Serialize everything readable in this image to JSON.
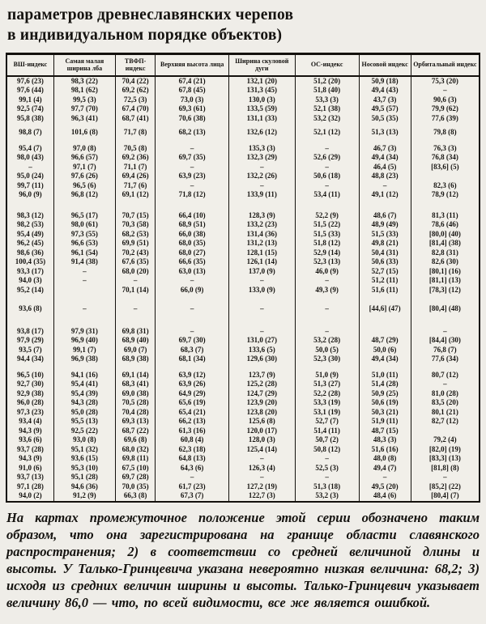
{
  "page": {
    "title_line1": "параметров древнеславянских черепов",
    "title_line2": "в индивидуальном порядке объектов)",
    "footnote": "На картах промежуточное положение этой серии обозначено таким образом, что она зарегистрирована на границе области славянского распространения; 2) в соответствии со средней величиной длины и высоты. У Талько-Гринцевича указана невероятно низкая величина: 68,2; 3) исходя из средних величин ширины и высоты. Талько-Гринцевич указывает величину 86,0 — что, по всей видимости, все же является ошибкой."
  },
  "table": {
    "columns": [
      "ВШ-индекс",
      "Самая малая ширина лба",
      "ТВФП-индекс",
      "Верхняя высота лица",
      "Ширина скуловой дуги",
      "ОС-индекс",
      "Носовой индекс",
      "Орбитальный индекс"
    ],
    "groups": [
      {
        "rows": [
          [
            "97,6 (23)",
            "98,3 (22)",
            "70,4 (22)",
            "67,4 (21)",
            "132,1 (20)",
            "51,2 (20)",
            "50,9 (18)",
            "75,3 (20)"
          ],
          [
            "97,6 (44)",
            "98,1 (62)",
            "69,2 (62)",
            "67,8 (45)",
            "131,3 (45)",
            "51,8 (40)",
            "49,4 (43)",
            "–"
          ],
          [
            "99,1 (4)",
            "99,5 (3)",
            "72,5 (3)",
            "73,0 (3)",
            "130,0 (3)",
            "53,3 (3)",
            "43,7 (3)",
            "90,6 (3)"
          ],
          [
            "92,5 (74)",
            "97,7 (70)",
            "67,4 (70)",
            "69,3 (61)",
            "133,5 (59)",
            "52,1 (38)",
            "49,5 (57)",
            "79,9 (62)"
          ],
          [
            "95,8 (38)",
            "96,3 (41)",
            "68,7 (41)",
            "70,6 (38)",
            "131,1 (33)",
            "53,2 (32)",
            "50,5 (35)",
            "77,6 (39)"
          ]
        ]
      },
      {
        "rows": [
          [
            "98,8 (7)",
            "101,6 (8)",
            "71,7 (8)",
            "68,2 (13)",
            "132,6 (12)",
            "52,1 (12)",
            "51,3 (13)",
            "79,8 (8)"
          ]
        ]
      },
      {
        "rows": [
          [
            "95,4 (7)",
            "97,0 (8)",
            "70,5 (8)",
            "–",
            "135,3 (3)",
            "–",
            "46,7 (3)",
            "76,3 (3)"
          ],
          [
            "98,0 (43)",
            "96,6 (57)",
            "69,2 (36)",
            "69,7 (35)",
            "132,3 (29)",
            "52,6 (29)",
            "49,4 (34)",
            "76,8 (34)"
          ],
          [
            "–",
            "97,1 (7)",
            "71,1 (7)",
            "–",
            "–",
            "–",
            "46,4 (5)",
            "[83,6] (5)"
          ],
          [
            "95,0 (24)",
            "97,6 (26)",
            "69,4 (26)",
            "63,9 (23)",
            "132,2 (26)",
            "50,6 (18)",
            "48,8 (23)",
            ""
          ],
          [
            "99,7 (11)",
            "96,5 (6)",
            "71,7 (6)",
            "–",
            "–",
            "–",
            "–",
            "82,3 (6)"
          ],
          [
            "96,0 (9)",
            "96,8 (12)",
            "69,1 (12)",
            "71,8 (12)",
            "133,9 (11)",
            "53,4 (11)",
            "49,1 (12)",
            "78,9 (12)"
          ]
        ]
      },
      {
        "rows": [
          [
            "98,3 (12)",
            "96,5 (17)",
            "70,7 (15)",
            "66,4 (10)",
            "128,3 (9)",
            "52,2 (9)",
            "48,6 (7)",
            "81,3 (11)"
          ],
          [
            "98,2 (53)",
            "98,0 (61)",
            "70,3 (58)",
            "68,9 (51)",
            "133,2 (23)",
            "51,5 (22)",
            "48,9 (49)",
            "78,6 (46)"
          ],
          [
            "95,4 (49)",
            "97,3 (55)",
            "68,2 (53)",
            "66,0 (38)",
            "131,4 (36)",
            "51,5 (33)",
            "51,5 (33)",
            "[80,0] (40)"
          ],
          [
            "96,2 (45)",
            "96,6 (53)",
            "69,9 (51)",
            "68,0 (35)",
            "131,2 (13)",
            "51,8 (12)",
            "49,8 (21)",
            "[81,4] (38)"
          ],
          [
            "98,6 (36)",
            "96,1 (54)",
            "70,2 (43)",
            "68,0 (27)",
            "128,1 (15)",
            "52,9 (14)",
            "50,4 (31)",
            "82,8 (31)"
          ],
          [
            "100,4 (35)",
            "91,4 (38)",
            "67,6 (35)",
            "66,6 (35)",
            "126,1 (14)",
            "52,3 (13)",
            "50,6 (33)",
            "82,6 (30)"
          ],
          [
            "93,3 (17)",
            "–",
            "68,0 (20)",
            "63,0 (13)",
            "137,0 (9)",
            "46,0 (9)",
            "52,7 (15)",
            "[80,1] (16)"
          ],
          [
            "94,0 (3)",
            "–",
            "–",
            "–",
            "–",
            "–",
            "51,2 (11)",
            "[81,1] (13)"
          ],
          [
            "95,2 (14)",
            "",
            "70,1 (14)",
            "66,0 (9)",
            "133,0 (9)",
            "49,3 (9)",
            "51,6 (11)",
            "[78,3] (12)"
          ]
        ]
      },
      {
        "rows": [
          [
            "93,6 (8)",
            "–",
            "–",
            "–",
            "–",
            "–",
            "[44,6] (47)",
            "[80,4] (48)"
          ]
        ]
      },
      {
        "rows": [
          [
            "93,8 (17)",
            "97,9 (31)",
            "69,8 (31)",
            "–",
            "–",
            "–",
            "",
            "–"
          ],
          [
            "97,9 (29)",
            "96,9 (40)",
            "68,9 (40)",
            "69,7 (30)",
            "131,0 (27)",
            "53,2 (28)",
            "48,7 (29)",
            "[84,4] (30)"
          ],
          [
            "93,5 (7)",
            "99,1 (7)",
            "69,0 (7)",
            "68,3 (7)",
            "133,6 (5)",
            "50,0 (5)",
            "50,0 (6)",
            "76,8 (7)"
          ],
          [
            "94,4 (34)",
            "96,9 (38)",
            "68,9 (38)",
            "68,1 (34)",
            "129,6 (30)",
            "52,3 (30)",
            "49,4 (34)",
            "77,6 (34)"
          ]
        ]
      },
      {
        "rows": [
          [
            "96,5 (10)",
            "94,1 (16)",
            "69,1 (14)",
            "63,9 (12)",
            "123,7 (9)",
            "51,0 (9)",
            "51,0 (11)",
            "80,7 (12)"
          ],
          [
            "92,7 (30)",
            "95,4 (41)",
            "68,3 (41)",
            "63,9 (26)",
            "125,2 (28)",
            "51,3 (27)",
            "51,4 (28)",
            "–"
          ],
          [
            "92,9 (38)",
            "95,4 (39)",
            "69,0 (38)",
            "64,9 (29)",
            "124,7 (29)",
            "52,2 (28)",
            "50,9 (25)",
            "81,0 (28)"
          ],
          [
            "96,0 (28)",
            "94,3 (28)",
            "70,5 (28)",
            "65,6 (19)",
            "123,9 (20)",
            "53,3 (19)",
            "50,6 (19)",
            "83,5 (20)"
          ],
          [
            "97,3 (23)",
            "95,0 (28)",
            "70,4 (28)",
            "65,4 (21)",
            "123,8 (20)",
            "53,1 (19)",
            "50,3 (21)",
            "80,1 (21)"
          ],
          [
            "93,4 (4)",
            "95,5 (13)",
            "69,3 (13)",
            "66,2 (13)",
            "125,6 (8)",
            "52,7 (7)",
            "51,9 (11)",
            "82,7 (12)"
          ],
          [
            "94,3 (9)",
            "92,5 (22)",
            "68,7 (22)",
            "61,3 (16)",
            "120,0 (17)",
            "51,4 (11)",
            "48,7 (15)",
            ""
          ],
          [
            "93,6 (6)",
            "93,0 (8)",
            "69,6 (8)",
            "60,8 (4)",
            "128,0 (3)",
            "50,7 (2)",
            "48,3 (3)",
            "79,2 (4)"
          ],
          [
            "93,7 (28)",
            "95,1 (32)",
            "68,0 (32)",
            "62,3 (18)",
            "125,4 (14)",
            "50,8 (12)",
            "51,6 (16)",
            "[82,0] (19)"
          ],
          [
            "94,3 (9)",
            "93,6 (15)",
            "69,8 (11)",
            "64,8 (13)",
            "–",
            "–",
            "48,0 (8)",
            "[83,3] (13)"
          ],
          [
            "91,0 (6)",
            "95,3 (10)",
            "67,5 (10)",
            "64,3 (6)",
            "126,3 (4)",
            "52,5 (3)",
            "49,4 (7)",
            "[81,8] (8)"
          ],
          [
            "93,7 (13)",
            "95,1 (28)",
            "69,7 (28)",
            "–",
            "–",
            "–",
            "–",
            "–"
          ],
          [
            "97,1 (28)",
            "94,6 (36)",
            "70,0 (35)",
            "61,7 (23)",
            "127,2 (19)",
            "51,3 (18)",
            "49,5 (20)",
            "[85,2] (22)"
          ],
          [
            "94,0 (2)",
            "91,2 (9)",
            "66,3 (8)",
            "67,3 (7)",
            "122,7 (3)",
            "53,2 (3)",
            "48,4 (6)",
            "[80,4] (7)"
          ]
        ]
      }
    ]
  }
}
